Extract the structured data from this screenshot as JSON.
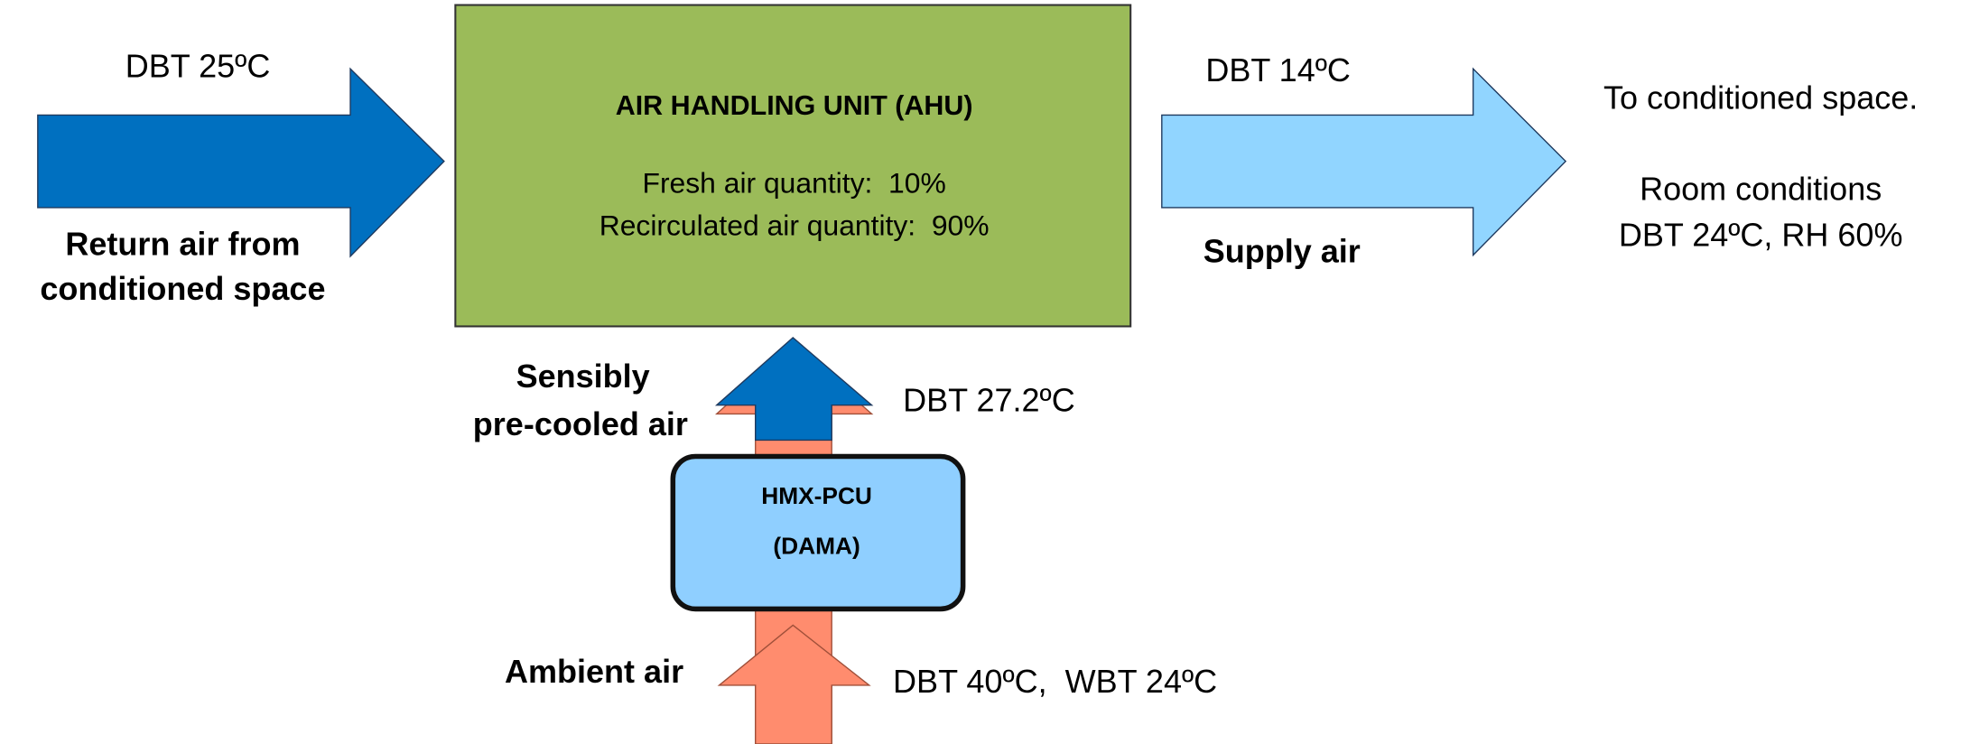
{
  "ahu": {
    "title": "AIR HANDLING UNIT (AHU)",
    "lines": [
      "Fresh air quantity:  10%",
      "Recirculated air quantity:  90%"
    ]
  },
  "return_air": {
    "temp": "DBT 25ºC",
    "label": [
      "Return air from",
      "conditioned space"
    ]
  },
  "supply_air": {
    "temp": "DBT 14ºC",
    "label": "Supply air"
  },
  "room": {
    "lines": [
      "To conditioned space.",
      "Room conditions",
      "DBT 24ºC, RH 60%"
    ]
  },
  "precooled": {
    "label": [
      "Sensibly",
      "pre-cooled air"
    ],
    "temp": "DBT 27.2ºC"
  },
  "hmx": {
    "lines": [
      "HMX-PCU",
      "(DAMA)"
    ]
  },
  "ambient": {
    "label": "Ambient air",
    "temp": "DBT 40ºC,  WBT 24ºC"
  }
}
